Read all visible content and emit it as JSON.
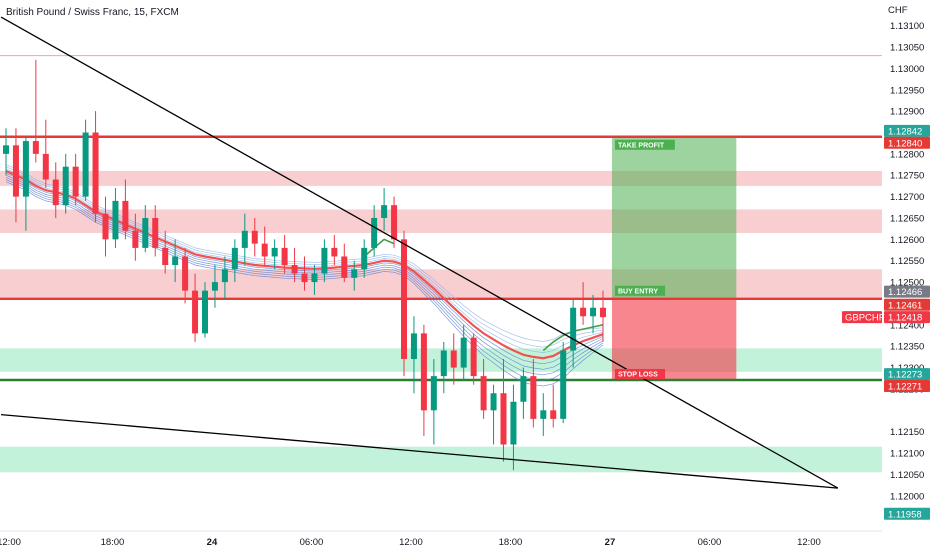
{
  "chart_title": "British Pound / Swiss Franc, 15, FXCM",
  "currency": "CHF",
  "chart_data": {
    "type": "candlestick",
    "symbol": "GBPCHF",
    "title": "British Pound / Swiss Franc, 15, FXCM",
    "ylim": [
      1.1192,
      1.1316
    ],
    "y_ticks": [
      "1.13100",
      "1.13050",
      "1.13000",
      "1.12950",
      "1.12900",
      "1.12800",
      "1.12750",
      "1.12700",
      "1.12650",
      "1.12600",
      "1.12550",
      "1.12500",
      "1.12400",
      "1.12350",
      "1.12300",
      "1.12250",
      "1.12150",
      "1.12100",
      "1.12050",
      "1.12000"
    ],
    "x_ticks": [
      "12:00",
      "18:00",
      "24",
      "06:00",
      "12:00",
      "18:00",
      "27",
      "06:00",
      "12:00"
    ],
    "x_tick_pos": [
      0.3,
      10.7,
      20.7,
      30.7,
      40.7,
      50.7,
      60.7,
      70.7,
      80.7
    ],
    "bar_count": 88,
    "price_badges": [
      {
        "label": "1.12842",
        "value": 1.12842,
        "color": "#26a69a"
      },
      {
        "label": "1.12840",
        "value": 1.1284,
        "color": "#e53935"
      },
      {
        "label": "1.12466",
        "value": 1.12466,
        "color": "#787b86"
      },
      {
        "label": "1.12461",
        "value": 1.12461,
        "color": "#e53935"
      },
      {
        "label": "1.12418",
        "value": 1.12418,
        "color": "#f23645",
        "symbol": "GBPCHF"
      },
      {
        "label": "1.12273",
        "value": 1.12273,
        "color": "#26a69a"
      },
      {
        "label": "1.12271",
        "value": 1.12271,
        "color": "#e53935"
      },
      {
        "label": "1.11958",
        "value": 1.11958,
        "color": "#26a69a"
      }
    ],
    "levels": [
      {
        "name": "take-profit-line",
        "value": 1.1284,
        "color": "#e53935"
      },
      {
        "name": "buy-entry-line",
        "value": 1.12461,
        "color": "#e53935"
      },
      {
        "name": "stop-loss-line",
        "value": 1.12271,
        "color": "#2e7d32"
      },
      {
        "name": "top-thin-line",
        "value": 1.1303,
        "color": "#f5a3a3"
      }
    ],
    "zones": [
      {
        "name": "resistance-zone-1",
        "top": 1.1276,
        "bottom": 1.12725,
        "color": "#f7c6c9"
      },
      {
        "name": "resistance-zone-2",
        "top": 1.1267,
        "bottom": 1.12615,
        "color": "#f7c6c9"
      },
      {
        "name": "resistance-zone-3",
        "top": 1.1253,
        "bottom": 1.12465,
        "color": "#f7c6c9"
      },
      {
        "name": "support-zone-1",
        "top": 1.12345,
        "bottom": 1.1229,
        "color": "#b9f0d3"
      },
      {
        "name": "support-zone-2",
        "top": 1.12115,
        "bottom": 1.12055,
        "color": "#b9f0d3"
      }
    ],
    "position": {
      "start_bar": 60.9,
      "end_bar": 73.4,
      "take_profit": 1.1284,
      "entry": 1.12461,
      "stop_loss": 1.12271,
      "labels": {
        "take_profit": "TAKE PROFIT",
        "entry": "BUY ENTRY",
        "stop": "STOP LOSS"
      }
    },
    "trendlines": [
      {
        "name": "upper-trendline",
        "x1": -0.5,
        "y1": 1.1312,
        "x2": 83.6,
        "y2": 1.12018
      },
      {
        "name": "lower-trendline",
        "x1": -0.5,
        "y1": 1.1219,
        "x2": 83.6,
        "y2": 1.12018
      }
    ],
    "ema_slow": [
      1.1276,
      1.1275,
      1.1274,
      1.12725,
      1.12715,
      1.1271,
      1.12705,
      1.12695,
      1.1268,
      1.12665,
      1.12655,
      1.12645,
      1.12635,
      1.12625,
      1.12615,
      1.12605,
      1.12595,
      1.12585,
      1.12575,
      1.12565,
      1.1256,
      1.12556,
      1.12552,
      1.12548,
      1.12544,
      1.1254,
      1.12538,
      1.12536,
      1.12534,
      1.12533,
      1.12532,
      1.12531,
      1.12532,
      1.12534,
      1.12536,
      1.12538,
      1.1254,
      1.12545,
      1.1255,
      1.12548,
      1.1254,
      1.12525,
      1.12505,
      1.12485,
      1.12462,
      1.1244,
      1.12418,
      1.12398,
      1.1238,
      1.12366,
      1.12352,
      1.1234,
      1.1233,
      1.12325,
      1.12322,
      1.12327,
      1.1234,
      1.12352,
      1.12362,
      1.1237,
      1.12378
    ],
    "ema_fast": [
      null,
      null,
      null,
      null,
      null,
      null,
      null,
      null,
      null,
      null,
      null,
      null,
      null,
      null,
      null,
      null,
      null,
      null,
      null,
      null,
      null,
      null,
      null,
      null,
      null,
      null,
      null,
      null,
      null,
      null,
      null,
      null,
      null,
      null,
      null,
      null,
      1.1256,
      1.1258,
      1.126,
      1.1259,
      null,
      null,
      null,
      null,
      null,
      null,
      null,
      null,
      null,
      null,
      null,
      null,
      null,
      null,
      1.1234,
      1.1236,
      1.12375,
      1.12385,
      1.1239,
      1.12395,
      1.124
    ],
    "candles": [
      [
        1.128,
        1.1286,
        1.1275,
        1.1282
      ],
      [
        1.1282,
        1.1286,
        1.1264,
        1.127
      ],
      [
        1.127,
        1.1284,
        1.1262,
        1.1283
      ],
      [
        1.1283,
        1.1302,
        1.1278,
        1.128
      ],
      [
        1.128,
        1.1288,
        1.1272,
        1.1274
      ],
      [
        1.1274,
        1.1278,
        1.1265,
        1.1268
      ],
      [
        1.1268,
        1.128,
        1.1266,
        1.1277
      ],
      [
        1.1277,
        1.128,
        1.1268,
        1.127
      ],
      [
        1.127,
        1.1288,
        1.1269,
        1.1285
      ],
      [
        1.1285,
        1.129,
        1.1264,
        1.1266
      ],
      [
        1.1266,
        1.127,
        1.1256,
        1.126
      ],
      [
        1.126,
        1.1272,
        1.1258,
        1.1269
      ],
      [
        1.1269,
        1.1274,
        1.126,
        1.1262
      ],
      [
        1.1262,
        1.1266,
        1.1255,
        1.1258
      ],
      [
        1.1258,
        1.1268,
        1.1257,
        1.1265
      ],
      [
        1.1265,
        1.1268,
        1.1256,
        1.1258
      ],
      [
        1.1258,
        1.1262,
        1.1252,
        1.1254
      ],
      [
        1.1254,
        1.126,
        1.125,
        1.1256
      ],
      [
        1.1256,
        1.1258,
        1.1245,
        1.1248
      ],
      [
        1.1248,
        1.1252,
        1.1236,
        1.1238
      ],
      [
        1.1238,
        1.125,
        1.1237,
        1.1248
      ],
      [
        1.1248,
        1.1254,
        1.1244,
        1.125
      ],
      [
        1.125,
        1.1256,
        1.1246,
        1.1253
      ],
      [
        1.1253,
        1.126,
        1.125,
        1.1258
      ],
      [
        1.1258,
        1.1266,
        1.1254,
        1.1262
      ],
      [
        1.1262,
        1.1265,
        1.1256,
        1.1259
      ],
      [
        1.1259,
        1.1263,
        1.1254,
        1.1256
      ],
      [
        1.1256,
        1.126,
        1.1253,
        1.1258
      ],
      [
        1.1258,
        1.1261,
        1.1252,
        1.1254
      ],
      [
        1.1254,
        1.1258,
        1.125,
        1.1252
      ],
      [
        1.1252,
        1.1256,
        1.1248,
        1.125
      ],
      [
        1.125,
        1.1254,
        1.1247,
        1.1252
      ],
      [
        1.1252,
        1.126,
        1.125,
        1.1258
      ],
      [
        1.1258,
        1.1261,
        1.1254,
        1.1256
      ],
      [
        1.1256,
        1.1259,
        1.125,
        1.1251
      ],
      [
        1.1251,
        1.1255,
        1.1248,
        1.1253
      ],
      [
        1.1253,
        1.126,
        1.1251,
        1.1258
      ],
      [
        1.1258,
        1.1268,
        1.1256,
        1.1265
      ],
      [
        1.1265,
        1.1272,
        1.1262,
        1.1268
      ],
      [
        1.1268,
        1.127,
        1.1258,
        1.126
      ],
      [
        1.126,
        1.1262,
        1.1228,
        1.1232
      ],
      [
        1.1232,
        1.1242,
        1.1224,
        1.1238
      ],
      [
        1.1238,
        1.124,
        1.1214,
        1.122
      ],
      [
        1.122,
        1.1232,
        1.1212,
        1.1228
      ],
      [
        1.1228,
        1.1236,
        1.1224,
        1.1234
      ],
      [
        1.1234,
        1.1238,
        1.1226,
        1.123
      ],
      [
        1.123,
        1.124,
        1.1227,
        1.1237
      ],
      [
        1.1237,
        1.1238,
        1.1226,
        1.1228
      ],
      [
        1.1228,
        1.1232,
        1.1218,
        1.122
      ],
      [
        1.122,
        1.1226,
        1.1212,
        1.1224
      ],
      [
        1.1224,
        1.1232,
        1.1208,
        1.1212
      ],
      [
        1.1212,
        1.1226,
        1.1206,
        1.1222
      ],
      [
        1.1222,
        1.123,
        1.1218,
        1.1228
      ],
      [
        1.1228,
        1.1232,
        1.1216,
        1.1218
      ],
      [
        1.1218,
        1.1224,
        1.1214,
        1.122
      ],
      [
        1.122,
        1.1226,
        1.1216,
        1.1218
      ],
      [
        1.1218,
        1.1236,
        1.1217,
        1.1234
      ],
      [
        1.1234,
        1.1246,
        1.123,
        1.1244
      ],
      [
        1.1244,
        1.125,
        1.124,
        1.1242
      ],
      [
        1.1242,
        1.1247,
        1.1238,
        1.1244
      ],
      [
        1.1244,
        1.1248,
        1.1236,
        1.12418
      ]
    ]
  }
}
